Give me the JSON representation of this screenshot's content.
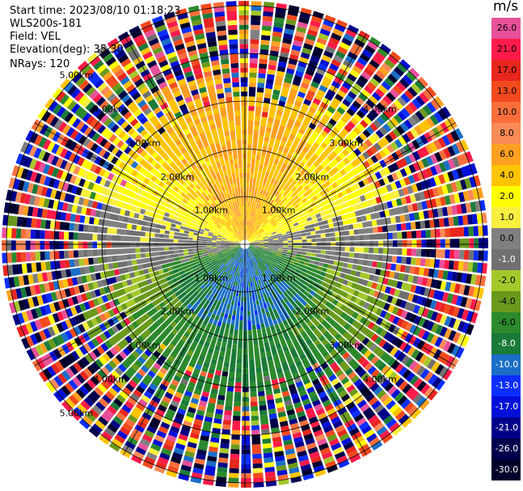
{
  "info": {
    "start_time": "Start time: 2023/08/10 01:18:23",
    "station": "WLS200s-181",
    "field": "Field: VEL",
    "elevation": "Elevation(deg): 35.30",
    "nrays": "NRays: 120"
  },
  "colorbar": {
    "unit": "m/s",
    "bins": [
      {
        "label": "26.0",
        "color": "#e8509a",
        "text": "#000000"
      },
      {
        "label": "21.0",
        "color": "#ff1a4a",
        "text": "#000000"
      },
      {
        "label": "17.0",
        "color": "#e8261e",
        "text": "#000000"
      },
      {
        "label": "13.0",
        "color": "#f24a1c",
        "text": "#000000"
      },
      {
        "label": "10.0",
        "color": "#fa6e3c",
        "text": "#000000"
      },
      {
        "label": "8.0",
        "color": "#fa8a58",
        "text": "#000000"
      },
      {
        "label": "6.0",
        "color": "#ffa020",
        "text": "#000000"
      },
      {
        "label": "4.0",
        "color": "#ffc400",
        "text": "#000000"
      },
      {
        "label": "2.0",
        "color": "#ffff00",
        "text": "#000000"
      },
      {
        "label": "1.0",
        "color": "#f8ef40",
        "text": "#000000"
      },
      {
        "label": "0.0",
        "color": "#808080",
        "text": "#000000"
      },
      {
        "label": "-1.0",
        "color": "#707070",
        "text": "#ffffff"
      },
      {
        "label": "-2.0",
        "color": "#a4c82a",
        "text": "#000000"
      },
      {
        "label": "-4.0",
        "color": "#6a9a1c",
        "text": "#000000"
      },
      {
        "label": "-6.0",
        "color": "#2c8a2c",
        "text": "#000000"
      },
      {
        "label": "-8.0",
        "color": "#1a7a3a",
        "text": "#ffffff"
      },
      {
        "label": "-10.0",
        "color": "#1a6ec8",
        "text": "#ffffff"
      },
      {
        "label": "-13.0",
        "color": "#0a2eff",
        "text": "#ffffff"
      },
      {
        "label": "-17.0",
        "color": "#0010d8",
        "text": "#ffffff"
      },
      {
        "label": "-21.0",
        "color": "#000088",
        "text": "#ffffff"
      },
      {
        "label": "-26.0",
        "color": "#00004a",
        "text": "#ffffff"
      },
      {
        "label": "-30.0",
        "color": "#00002a",
        "text": "#ffffff"
      }
    ]
  },
  "chart_data": {
    "type": "heatmap",
    "projection": "ppi",
    "field": "VEL",
    "units": "m/s",
    "elevation_deg": 35.3,
    "n_rays": 120,
    "range_rings_km": [
      1.0,
      2.0,
      3.0,
      4.0,
      5.0
    ],
    "range_ring_labels": [
      "1.00km",
      "2.00km",
      "3.00km",
      "4.00km",
      "5.00km"
    ],
    "max_range_km": 5.1,
    "velocity_pattern": {
      "north_sector": "positive (approx 2 to 8 m/s)",
      "south_sector": "negative (approx -2 to -10 m/s)",
      "outer_ranges": "noisy, full color range"
    }
  }
}
